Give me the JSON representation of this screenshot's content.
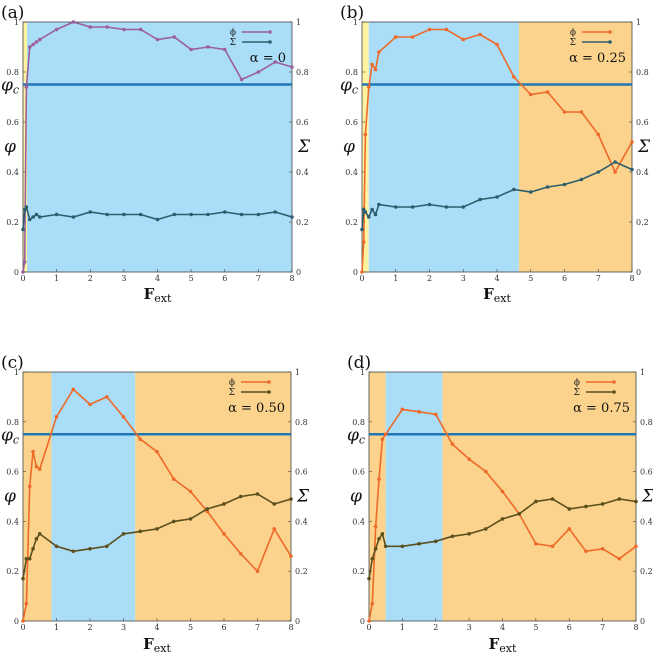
{
  "colors": {
    "phi_purple": "#9B5F9B",
    "phi_orange": "#EE6A2A",
    "sigma_blue": "#2E5E6E",
    "sigma_olive": "#5B4F1C",
    "phic_line": "#1F78B4",
    "yellow_bg": "#FFF3A0",
    "blue_bg": "#AADDF8",
    "orange_bg": "#FBD38C"
  },
  "chart_data": [
    {
      "panel": "(a)",
      "type": "line",
      "title": "",
      "xlabel": "F",
      "xlabel_sub": "ext",
      "ylabel_left": "φ",
      "ylabel_right": "Σ",
      "phic_label": "φc",
      "phi_c": 0.75,
      "xlim": [
        0,
        8
      ],
      "ylim": [
        0,
        1
      ],
      "x_ticks": [
        "0",
        "1",
        "2",
        "3",
        "4",
        "5",
        "6",
        "7",
        "8"
      ],
      "y_ticks": [
        "0",
        "0.2",
        "0.4",
        "0.6",
        "0.8",
        "1"
      ],
      "y_ticks_right": [
        "0",
        "0.2",
        "0.4",
        "0.6",
        "0.8",
        "1"
      ],
      "alpha_label": "α = 0",
      "legend": [
        "ϕ",
        "Σ"
      ],
      "regions": [
        {
          "from": 0,
          "to": 0.12,
          "color": "yellow_bg"
        },
        {
          "from": 0.12,
          "to": 8,
          "color": "blue_bg"
        }
      ],
      "series": [
        {
          "name": "ϕ",
          "color": "phi_purple",
          "x": [
            0,
            0.05,
            0.1,
            0.2,
            0.3,
            0.4,
            0.5,
            1,
            1.5,
            2,
            2.5,
            3,
            3.5,
            4,
            4.5,
            5,
            5.5,
            6,
            6.5,
            7,
            7.5,
            8
          ],
          "values": [
            0.0,
            0.04,
            0.74,
            0.9,
            0.91,
            0.92,
            0.93,
            0.97,
            1.0,
            0.98,
            0.98,
            0.97,
            0.97,
            0.93,
            0.94,
            0.89,
            0.9,
            0.89,
            0.77,
            0.8,
            0.84,
            0.82
          ]
        },
        {
          "name": "Σ",
          "color": "sigma_blue",
          "x": [
            0,
            0.05,
            0.1,
            0.2,
            0.3,
            0.4,
            0.5,
            1,
            1.5,
            2,
            2.5,
            3,
            3.5,
            4,
            4.5,
            5,
            5.5,
            6,
            6.5,
            7,
            7.5,
            8
          ],
          "values": [
            0.17,
            0.25,
            0.26,
            0.21,
            0.22,
            0.23,
            0.22,
            0.23,
            0.22,
            0.24,
            0.23,
            0.23,
            0.23,
            0.21,
            0.23,
            0.23,
            0.23,
            0.24,
            0.23,
            0.23,
            0.24,
            0.22
          ]
        }
      ]
    },
    {
      "panel": "(b)",
      "type": "line",
      "title": "",
      "xlabel": "F",
      "xlabel_sub": "ext",
      "ylabel_left": "φ",
      "ylabel_right": "Σ",
      "phic_label": "φc",
      "phi_c": 0.75,
      "xlim": [
        0,
        8
      ],
      "ylim": [
        0,
        1
      ],
      "x_ticks": [
        "0",
        "1",
        "2",
        "3",
        "4",
        "5",
        "6",
        "7",
        "8"
      ],
      "y_ticks": [
        "0",
        "0.2",
        "0.4",
        "0.6",
        "0.8",
        "1"
      ],
      "y_ticks_right": [
        "0",
        "0.2",
        "0.4",
        "0.6",
        "0.8",
        "1"
      ],
      "alpha_label": "α = 0.25",
      "legend": [
        "ϕ",
        "Σ"
      ],
      "regions": [
        {
          "from": 0,
          "to": 0.2,
          "color": "yellow_bg"
        },
        {
          "from": 0.2,
          "to": 4.65,
          "color": "blue_bg"
        },
        {
          "from": 4.65,
          "to": 8,
          "color": "orange_bg"
        }
      ],
      "series": [
        {
          "name": "ϕ",
          "color": "phi_orange",
          "x": [
            0,
            0.05,
            0.1,
            0.2,
            0.3,
            0.4,
            0.5,
            1,
            1.5,
            2,
            2.5,
            3,
            3.5,
            4,
            4.5,
            5,
            5.5,
            6,
            6.5,
            7,
            7.5,
            8
          ],
          "values": [
            0.0,
            0.12,
            0.55,
            0.74,
            0.83,
            0.81,
            0.88,
            0.94,
            0.94,
            0.97,
            0.97,
            0.93,
            0.95,
            0.91,
            0.78,
            0.71,
            0.72,
            0.64,
            0.64,
            0.55,
            0.4,
            0.52
          ]
        },
        {
          "name": "Σ",
          "color": "sigma_blue",
          "x": [
            0,
            0.05,
            0.1,
            0.2,
            0.3,
            0.4,
            0.5,
            1,
            1.5,
            2,
            2.5,
            3,
            3.5,
            4,
            4.5,
            5,
            5.5,
            6,
            6.5,
            7,
            7.5,
            8
          ],
          "values": [
            0.17,
            0.25,
            0.24,
            0.22,
            0.25,
            0.23,
            0.27,
            0.26,
            0.26,
            0.27,
            0.26,
            0.26,
            0.29,
            0.3,
            0.33,
            0.32,
            0.34,
            0.35,
            0.37,
            0.4,
            0.44,
            0.41
          ]
        }
      ]
    },
    {
      "panel": "(c)",
      "type": "line",
      "title": "",
      "xlabel": "F",
      "xlabel_sub": "ext",
      "ylabel_left": "φ",
      "ylabel_right": "Σ",
      "phic_label": "φc",
      "phi_c": 0.75,
      "xlim": [
        0,
        8
      ],
      "ylim": [
        0,
        1
      ],
      "x_ticks": [
        "0",
        "1",
        "2",
        "3",
        "4",
        "5",
        "6",
        "7",
        "8"
      ],
      "y_ticks": [
        "0",
        "0.2",
        "0.4",
        "0.6",
        "0.8",
        "1"
      ],
      "y_ticks_right": [
        "0",
        "0.2",
        "0.4",
        "0.6",
        "0.8",
        "1"
      ],
      "alpha_label": "α = 0.50",
      "legend": [
        "ϕ",
        "Σ"
      ],
      "regions": [
        {
          "from": 0,
          "to": 0.85,
          "color": "orange_bg"
        },
        {
          "from": 0.85,
          "to": 3.35,
          "color": "blue_bg"
        },
        {
          "from": 3.35,
          "to": 8,
          "color": "orange_bg"
        }
      ],
      "series": [
        {
          "name": "ϕ",
          "color": "phi_orange",
          "x": [
            0,
            0.1,
            0.2,
            0.3,
            0.4,
            0.5,
            1,
            1.5,
            2,
            2.5,
            3,
            3.5,
            4,
            4.5,
            5,
            5.5,
            6,
            6.5,
            7,
            7.5,
            8
          ],
          "values": [
            0.0,
            0.07,
            0.54,
            0.68,
            0.62,
            0.61,
            0.82,
            0.93,
            0.87,
            0.9,
            0.82,
            0.73,
            0.68,
            0.57,
            0.52,
            0.44,
            0.35,
            0.27,
            0.2,
            0.37,
            0.26
          ]
        },
        {
          "name": "Σ",
          "color": "sigma_olive",
          "x": [
            0,
            0.1,
            0.2,
            0.3,
            0.4,
            0.5,
            1,
            1.5,
            2,
            2.5,
            3,
            3.5,
            4,
            4.5,
            5,
            5.5,
            6,
            6.5,
            7,
            7.5,
            8
          ],
          "values": [
            0.17,
            0.25,
            0.25,
            0.29,
            0.33,
            0.35,
            0.3,
            0.28,
            0.29,
            0.3,
            0.35,
            0.36,
            0.37,
            0.4,
            0.41,
            0.45,
            0.47,
            0.5,
            0.51,
            0.47,
            0.49
          ]
        }
      ]
    },
    {
      "panel": "(d)",
      "type": "line",
      "title": "",
      "xlabel": "F",
      "xlabel_sub": "ext",
      "ylabel_left": "φ",
      "ylabel_right": "Σ",
      "phic_label": "φc",
      "phi_c": 0.75,
      "xlim": [
        0,
        8
      ],
      "ylim": [
        0,
        1
      ],
      "x_ticks": [
        "0",
        "1",
        "2",
        "3",
        "4",
        "5",
        "6",
        "7",
        "8"
      ],
      "y_ticks": [
        "0",
        "0.2",
        "0.4",
        "0.6",
        "0.8",
        "1"
      ],
      "y_ticks_right": [
        "0",
        "0.2",
        "0.4",
        "0.6",
        "0.8",
        "1"
      ],
      "alpha_label": "α = 0.75",
      "legend": [
        "ϕ",
        "Σ"
      ],
      "regions": [
        {
          "from": 0,
          "to": 0.5,
          "color": "orange_bg"
        },
        {
          "from": 0.5,
          "to": 2.2,
          "color": "blue_bg"
        },
        {
          "from": 2.2,
          "to": 8,
          "color": "orange_bg"
        }
      ],
      "series": [
        {
          "name": "ϕ",
          "color": "phi_orange",
          "x": [
            0,
            0.1,
            0.2,
            0.3,
            0.4,
            0.5,
            1,
            1.5,
            2,
            2.5,
            3,
            3.5,
            4,
            4.5,
            5,
            5.5,
            6,
            6.5,
            7,
            7.5,
            8
          ],
          "values": [
            0.0,
            0.07,
            0.38,
            0.57,
            0.73,
            0.75,
            0.85,
            0.84,
            0.83,
            0.71,
            0.65,
            0.6,
            0.52,
            0.43,
            0.31,
            0.3,
            0.37,
            0.28,
            0.29,
            0.25,
            0.3
          ]
        },
        {
          "name": "Σ",
          "color": "sigma_olive",
          "x": [
            0,
            0.1,
            0.2,
            0.3,
            0.4,
            0.5,
            1,
            1.5,
            2,
            2.5,
            3,
            3.5,
            4,
            4.5,
            5,
            5.5,
            6,
            6.5,
            7,
            7.5,
            8
          ],
          "values": [
            0.17,
            0.25,
            0.29,
            0.33,
            0.35,
            0.3,
            0.3,
            0.31,
            0.32,
            0.34,
            0.35,
            0.37,
            0.41,
            0.43,
            0.48,
            0.49,
            0.45,
            0.46,
            0.47,
            0.49,
            0.48
          ]
        }
      ]
    }
  ]
}
